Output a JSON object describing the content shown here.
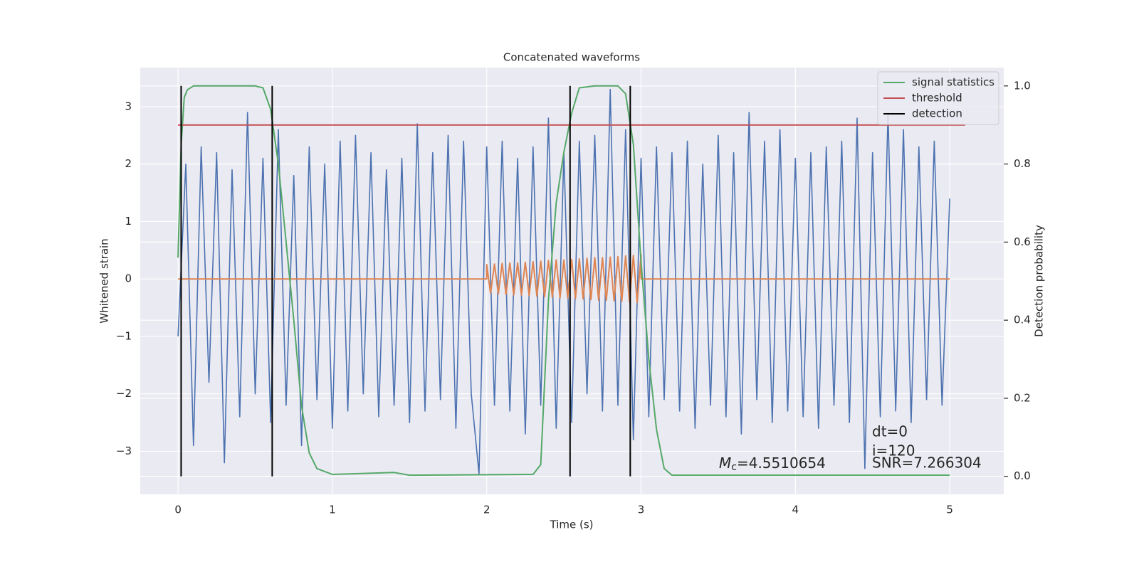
{
  "chart_data": {
    "type": "line",
    "title": "Concatenated waveforms",
    "xlabel": "Time (s)",
    "ylabel": "Whitened strain",
    "y2label": "Detection probability",
    "xlim": [
      -0.245,
      5.35
    ],
    "ylim": [
      -3.75,
      3.68
    ],
    "y2lim": [
      -0.046,
      1.047
    ],
    "xticks": [
      0,
      1,
      2,
      3,
      4,
      5
    ],
    "yticks": [
      {
        "value": -3,
        "label": "−3"
      },
      {
        "value": -2,
        "label": "−2"
      },
      {
        "value": -1,
        "label": "−1"
      },
      0,
      1,
      2,
      3
    ],
    "y2ticks": [
      {
        "value": 0,
        "label": "0.0"
      },
      {
        "value": 0.2,
        "label": "0.2"
      },
      {
        "value": 0.4,
        "label": "0.4"
      },
      {
        "value": 0.6,
        "label": "0.6"
      },
      {
        "value": 0.8,
        "label": "0.8"
      },
      {
        "value": 1,
        "label": "1.0"
      }
    ],
    "grid": true,
    "legend": "upper right",
    "series": [
      {
        "color": "#4c72b0",
        "x": [
          0,
          0.05,
          0.1,
          0.15,
          0.2,
          0.25,
          0.3,
          0.35,
          0.4,
          0.45,
          0.5,
          0.55,
          0.6,
          0.65,
          0.7,
          0.75,
          0.8,
          0.85,
          0.9,
          0.95,
          1,
          1.05,
          1.1,
          1.15,
          1.2,
          1.25,
          1.3,
          1.35,
          1.4,
          1.45,
          1.5,
          1.55,
          1.6,
          1.65,
          1.7,
          1.75,
          1.8,
          1.85,
          1.9,
          1.95,
          2,
          2.05,
          2.1,
          2.15,
          2.2,
          2.25,
          2.3,
          2.35,
          2.4,
          2.45,
          2.5,
          2.55,
          2.6,
          2.65,
          2.7,
          2.75,
          2.8,
          2.85,
          2.9,
          2.95,
          3,
          3.05,
          3.1,
          3.15,
          3.2,
          3.25,
          3.3,
          3.35,
          3.4,
          3.45,
          3.5,
          3.55,
          3.6,
          3.65,
          3.7,
          3.75,
          3.8,
          3.85,
          3.9,
          3.95,
          4,
          4.05,
          4.1,
          4.15,
          4.2,
          4.25,
          4.3,
          4.35,
          4.4,
          4.45,
          4.5,
          4.55,
          4.6,
          4.65,
          4.7,
          4.75,
          4.8,
          4.85,
          4.9,
          4.95,
          5
        ],
        "values": [
          -1.0,
          2.0,
          -2.9,
          2.3,
          -1.8,
          2.2,
          -3.2,
          1.9,
          -2.4,
          2.9,
          -2.0,
          2.1,
          -2.5,
          2.6,
          -2.2,
          1.8,
          -2.9,
          2.3,
          -2.1,
          2.0,
          -2.6,
          2.4,
          -2.3,
          2.5,
          -2.0,
          2.2,
          -2.4,
          1.9,
          -2.2,
          2.1,
          -2.5,
          2.7,
          -2.3,
          2.2,
          -2.1,
          2.5,
          -2.6,
          2.4,
          -2.0,
          -3.4,
          2.3,
          -2.2,
          2.4,
          -2.3,
          2.1,
          -2.7,
          2.3,
          -2.2,
          2.8,
          -2.6,
          2.2,
          -2.5,
          2.4,
          -2.0,
          2.5,
          -2.3,
          3.3,
          -2.2,
          2.6,
          -2.8,
          2.1,
          -2.4,
          2.3,
          -2.1,
          2.2,
          -2.3,
          2.4,
          -2.6,
          2.0,
          -2.2,
          2.5,
          -2.4,
          2.2,
          -2.7,
          2.9,
          -2.1,
          2.4,
          -2.5,
          2.6,
          -2.3,
          2.1,
          -2.4,
          2.2,
          -2.6,
          2.3,
          -2.2,
          2.4,
          -2.5,
          2.8,
          -3.3,
          2.2,
          -2.4,
          2.9,
          -2.3,
          2.6,
          -2.5,
          2.3,
          -2.1,
          2.4,
          -2.2,
          1.4
        ]
      },
      {
        "color": "#dd8452",
        "x": [
          0,
          2,
          2.0,
          2.025,
          2.05,
          2.075,
          2.1,
          2.125,
          2.15,
          2.175,
          2.2,
          2.225,
          2.25,
          2.275,
          2.3,
          2.325,
          2.35,
          2.375,
          2.4,
          2.425,
          2.45,
          2.475,
          2.5,
          2.525,
          2.55,
          2.575,
          2.6,
          2.625,
          2.65,
          2.675,
          2.7,
          2.725,
          2.75,
          2.775,
          2.8,
          2.825,
          2.85,
          2.875,
          2.9,
          2.925,
          2.95,
          2.975,
          3.0,
          3,
          5
        ],
        "values": [
          0,
          0,
          0.25,
          -0.25,
          0.26,
          -0.26,
          0.27,
          -0.27,
          0.28,
          -0.28,
          0.28,
          -0.28,
          0.29,
          -0.29,
          0.3,
          -0.3,
          0.31,
          -0.31,
          0.32,
          -0.32,
          0.33,
          -0.33,
          0.33,
          -0.33,
          0.34,
          -0.34,
          0.35,
          -0.35,
          0.36,
          -0.36,
          0.37,
          -0.37,
          0.37,
          -0.37,
          0.38,
          -0.38,
          0.39,
          -0.39,
          0.4,
          -0.4,
          0.41,
          -0.41,
          0.42,
          0,
          0
        ]
      },
      {
        "name": "signal statistics",
        "color": "#55a868",
        "axis": "y2",
        "x": [
          0,
          0.02,
          0.04,
          0.06,
          0.1,
          0.5,
          0.55,
          0.6,
          0.65,
          0.7,
          0.75,
          0.8,
          0.85,
          0.9,
          1.0,
          1.4,
          1.5,
          2.3,
          2.35,
          2.4,
          2.45,
          2.5,
          2.55,
          2.6,
          2.7,
          2.85,
          2.9,
          2.95,
          3.0,
          3.05,
          3.1,
          3.15,
          3.2,
          5.0
        ],
        "values": [
          0.56,
          0.85,
          0.97,
          0.99,
          1.0,
          1.0,
          0.995,
          0.94,
          0.8,
          0.6,
          0.4,
          0.18,
          0.06,
          0.02,
          0.005,
          0.01,
          0.003,
          0.005,
          0.03,
          0.45,
          0.7,
          0.83,
          0.93,
          0.995,
          1.0,
          1.0,
          0.98,
          0.85,
          0.55,
          0.3,
          0.12,
          0.02,
          0.003,
          0.003
        ]
      },
      {
        "name": "threshold",
        "color": "#c44e52",
        "axis": "y2",
        "x": [
          0,
          5.1
        ],
        "values": [
          0.9,
          0.9
        ]
      },
      {
        "name": "detection",
        "color": "#000000",
        "axis": "y2",
        "kind": "vlines",
        "x": [
          0.02,
          0.61,
          2.54,
          2.93
        ],
        "ymin": 0,
        "ymax": 1
      }
    ],
    "annotations": {
      "dt": "dt=0",
      "i": "i=120",
      "snr": "SNR=7.266304",
      "mc": {
        "symbol": "M",
        "subscript": "c",
        "text": "=4.5510654"
      }
    }
  }
}
